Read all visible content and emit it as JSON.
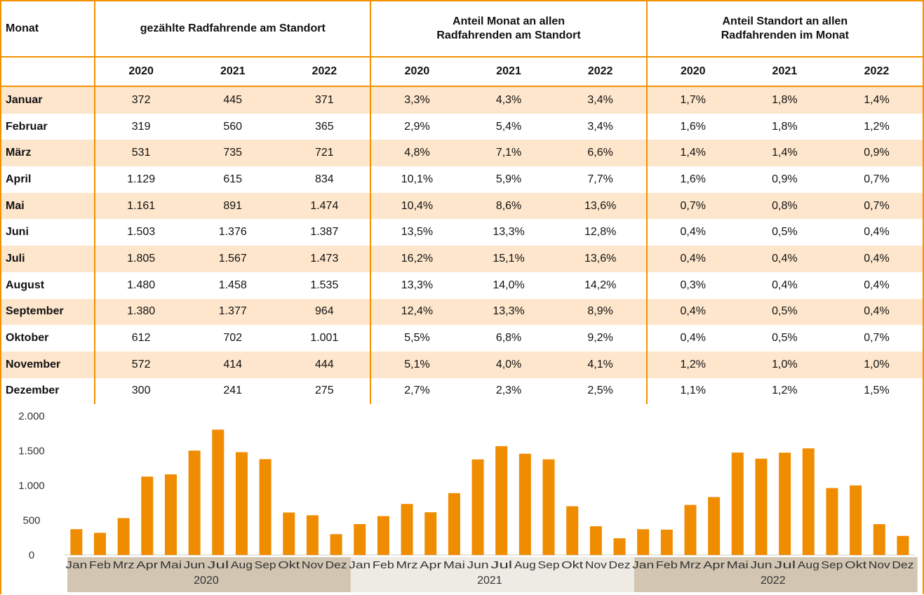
{
  "table": {
    "header": [
      "Monat",
      "gezählte Radfahrende am Standort",
      "Anteil Monat an allen Radfahrenden am Standort",
      "Anteil Standort an allen Radfahrenden im Monat"
    ],
    "years": [
      "2020",
      "2021",
      "2022",
      "2020",
      "2021",
      "2022",
      "2020",
      "2021",
      "2022"
    ],
    "rows": [
      [
        "Januar",
        "372",
        "445",
        "371",
        "3,3%",
        "4,3%",
        "3,4%",
        "1,7%",
        "1,8%",
        "1,4%"
      ],
      [
        "Februar",
        "319",
        "560",
        "365",
        "2,9%",
        "5,4%",
        "3,4%",
        "1,6%",
        "1,8%",
        "1,2%"
      ],
      [
        "März",
        "531",
        "735",
        "721",
        "4,8%",
        "7,1%",
        "6,6%",
        "1,4%",
        "1,4%",
        "0,9%"
      ],
      [
        "April",
        "1.129",
        "615",
        "834",
        "10,1%",
        "5,9%",
        "7,7%",
        "1,6%",
        "0,9%",
        "0,7%"
      ],
      [
        "Mai",
        "1.161",
        "891",
        "1.474",
        "10,4%",
        "8,6%",
        "13,6%",
        "0,7%",
        "0,8%",
        "0,7%"
      ],
      [
        "Juni",
        "1.503",
        "1.376",
        "1.387",
        "13,5%",
        "13,3%",
        "12,8%",
        "0,4%",
        "0,5%",
        "0,4%"
      ],
      [
        "Juli",
        "1.805",
        "1.567",
        "1.473",
        "16,2%",
        "15,1%",
        "13,6%",
        "0,4%",
        "0,4%",
        "0,4%"
      ],
      [
        "August",
        "1.480",
        "1.458",
        "1.535",
        "13,3%",
        "14,0%",
        "14,2%",
        "0,3%",
        "0,4%",
        "0,4%"
      ],
      [
        "September",
        "1.380",
        "1.377",
        "964",
        "12,4%",
        "13,3%",
        "8,9%",
        "0,4%",
        "0,5%",
        "0,4%"
      ],
      [
        "Oktober",
        "612",
        "702",
        "1.001",
        "5,5%",
        "6,8%",
        "9,2%",
        "0,4%",
        "0,5%",
        "0,7%"
      ],
      [
        "November",
        "572",
        "414",
        "444",
        "5,1%",
        "4,0%",
        "4,1%",
        "1,2%",
        "1,0%",
        "1,0%"
      ],
      [
        "Dezember",
        "300",
        "241",
        "275",
        "2,7%",
        "2,3%",
        "2,5%",
        "1,1%",
        "1,2%",
        "1,5%"
      ]
    ]
  },
  "chart_data": {
    "type": "bar",
    "color": "#f08c00",
    "categories": [
      "Jan",
      "Feb",
      "Mrz",
      "Apr",
      "Mai",
      "Jun",
      "Jul",
      "Aug",
      "Sep",
      "Okt",
      "Nov",
      "Dez"
    ],
    "series": [
      {
        "name": "2020",
        "values": [
          372,
          319,
          531,
          1129,
          1161,
          1503,
          1805,
          1480,
          1380,
          612,
          572,
          300
        ]
      },
      {
        "name": "2021",
        "values": [
          445,
          560,
          735,
          615,
          891,
          1376,
          1567,
          1458,
          1377,
          702,
          414,
          241
        ]
      },
      {
        "name": "2022",
        "values": [
          371,
          365,
          721,
          834,
          1474,
          1387,
          1473,
          1535,
          964,
          1001,
          444,
          275
        ]
      }
    ],
    "ylim": [
      0,
      2000
    ],
    "yticks": [
      0,
      500,
      {
        "value": 1000,
        "label": "1.000"
      },
      {
        "value": 1500,
        "label": "1.500"
      },
      {
        "value": 2000,
        "label": "2.000"
      }
    ]
  }
}
